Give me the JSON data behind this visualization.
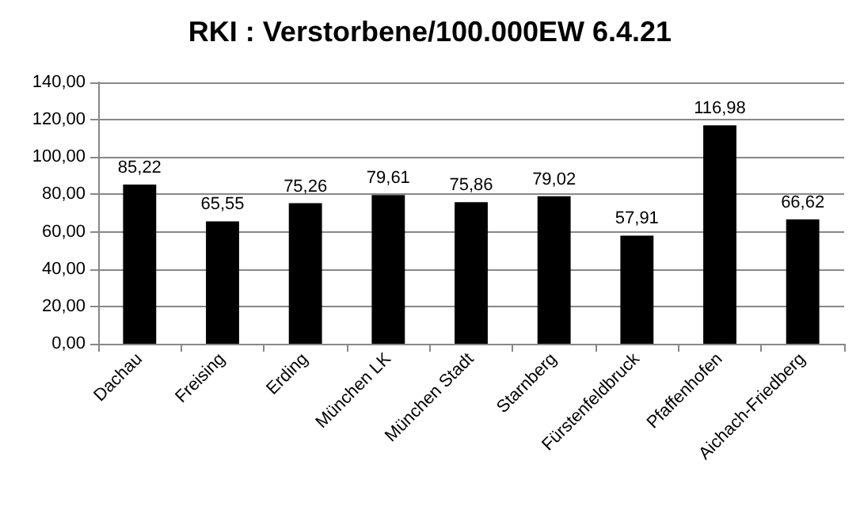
{
  "chart_data": {
    "type": "bar",
    "title": "RKI : Verstorbene/100.000EW 6.4.21",
    "categories": [
      "Dachau",
      "Freising",
      "Erding",
      "München LK",
      "München Stadt",
      "Starnberg",
      "Fürstenfeldbruck",
      "Pfaffenhofen",
      "Aichach-Friedberg"
    ],
    "values": [
      85.22,
      65.55,
      75.26,
      79.61,
      75.86,
      79.02,
      57.91,
      116.98,
      66.62
    ],
    "value_labels": [
      "85,22",
      "65,55",
      "75,26",
      "79,61",
      "75,86",
      "79,02",
      "57,91",
      "116,98",
      "66,62"
    ],
    "color": "#000000",
    "ylim": [
      0,
      140
    ],
    "yticks": [
      {
        "value": 0,
        "label": "0,00"
      },
      {
        "value": 20,
        "label": "20,00"
      },
      {
        "value": 40,
        "label": "40,00"
      },
      {
        "value": 60,
        "label": "60,00"
      },
      {
        "value": 80,
        "label": "80,00"
      },
      {
        "value": 100,
        "label": "100,00"
      },
      {
        "value": 120,
        "label": "120,00"
      },
      {
        "value": 140,
        "label": "140,00"
      }
    ],
    "grid": "y"
  }
}
